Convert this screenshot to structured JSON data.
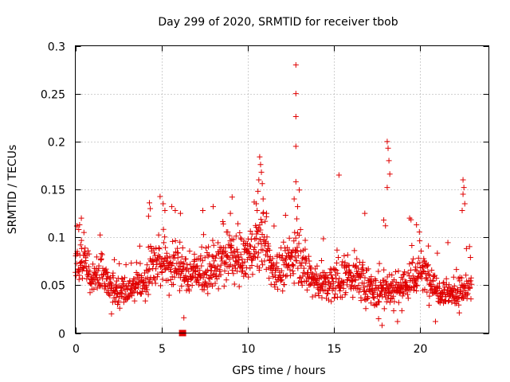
{
  "chart_data": {
    "type": "scatter",
    "title": "Day 299 of 2020, SRMTID for receiver tbob",
    "xlabel": "GPS time / hours",
    "ylabel": "SRMTID / TECUs",
    "xlim": [
      0,
      24
    ],
    "ylim": [
      0,
      0.3
    ],
    "x_ticks": [
      0,
      5,
      10,
      15,
      20
    ],
    "x_tick_labels": [
      "0",
      "5",
      "10",
      "15",
      "20"
    ],
    "y_ticks": [
      0,
      0.05,
      0.1,
      0.15,
      0.2,
      0.25,
      0.3
    ],
    "y_tick_labels": [
      "0",
      "0.05",
      "0.1",
      "0.15",
      "0.2",
      "0.25",
      "0.3"
    ],
    "grid": true,
    "marker": "plus",
    "color": "#e00000",
    "data_span_hours": [
      0,
      23
    ],
    "data_gap_markers": [
      6.2
    ],
    "profile": {
      "hours": [
        0,
        0.5,
        1,
        1.5,
        2,
        2.5,
        3,
        3.5,
        4,
        4.5,
        5,
        5.5,
        6,
        6.5,
        7,
        7.5,
        8,
        8.5,
        9,
        9.5,
        10,
        10.5,
        11,
        11.5,
        12,
        12.5,
        13,
        13.5,
        14,
        14.5,
        15,
        15.5,
        16,
        16.5,
        17,
        17.5,
        18,
        18.5,
        19,
        19.5,
        20,
        20.5,
        21,
        21.5,
        22,
        22.5,
        23
      ],
      "median": [
        0.075,
        0.08,
        0.05,
        0.065,
        0.05,
        0.045,
        0.045,
        0.05,
        0.055,
        0.075,
        0.075,
        0.07,
        0.07,
        0.06,
        0.065,
        0.06,
        0.065,
        0.075,
        0.08,
        0.075,
        0.08,
        0.095,
        0.09,
        0.065,
        0.065,
        0.075,
        0.085,
        0.06,
        0.055,
        0.05,
        0.05,
        0.06,
        0.06,
        0.055,
        0.05,
        0.04,
        0.05,
        0.045,
        0.05,
        0.055,
        0.065,
        0.06,
        0.045,
        0.045,
        0.04,
        0.045,
        0.05
      ],
      "spread": [
        0.025,
        0.02,
        0.015,
        0.02,
        0.015,
        0.015,
        0.015,
        0.015,
        0.02,
        0.025,
        0.025,
        0.025,
        0.025,
        0.02,
        0.02,
        0.02,
        0.02,
        0.025,
        0.025,
        0.025,
        0.025,
        0.03,
        0.03,
        0.02,
        0.02,
        0.025,
        0.025,
        0.02,
        0.02,
        0.02,
        0.02,
        0.025,
        0.02,
        0.02,
        0.02,
        0.015,
        0.02,
        0.02,
        0.02,
        0.025,
        0.02,
        0.02,
        0.015,
        0.015,
        0.015,
        0.015,
        0.02
      ]
    },
    "peaks": [
      {
        "x": 12.8,
        "y": 0.28
      },
      {
        "x": 12.8,
        "y": 0.25
      },
      {
        "x": 12.8,
        "y": 0.226
      },
      {
        "x": 12.8,
        "y": 0.195
      },
      {
        "x": 12.8,
        "y": 0.158
      },
      {
        "x": 18.1,
        "y": 0.2
      },
      {
        "x": 18.15,
        "y": 0.193
      },
      {
        "x": 18.2,
        "y": 0.18
      },
      {
        "x": 18.25,
        "y": 0.166
      },
      {
        "x": 18.1,
        "y": 0.152
      },
      {
        "x": 15.3,
        "y": 0.165
      },
      {
        "x": 22.5,
        "y": 0.16
      },
      {
        "x": 22.55,
        "y": 0.152
      },
      {
        "x": 22.5,
        "y": 0.145
      },
      {
        "x": 22.6,
        "y": 0.135
      },
      {
        "x": 22.45,
        "y": 0.128
      },
      {
        "x": 10.7,
        "y": 0.184
      },
      {
        "x": 10.75,
        "y": 0.176
      },
      {
        "x": 10.8,
        "y": 0.168
      },
      {
        "x": 10.65,
        "y": 0.16
      },
      {
        "x": 10.85,
        "y": 0.156
      },
      {
        "x": 10.6,
        "y": 0.148
      },
      {
        "x": 10.9,
        "y": 0.14
      },
      {
        "x": 10.5,
        "y": 0.135
      },
      {
        "x": 9.1,
        "y": 0.142
      },
      {
        "x": 12.7,
        "y": 0.14
      },
      {
        "x": 12.9,
        "y": 0.132
      },
      {
        "x": 4.3,
        "y": 0.136
      },
      {
        "x": 4.35,
        "y": 0.13
      },
      {
        "x": 4.25,
        "y": 0.122
      },
      {
        "x": 5.1,
        "y": 0.135
      },
      {
        "x": 5.2,
        "y": 0.128
      },
      {
        "x": 5.6,
        "y": 0.132
      },
      {
        "x": 5.8,
        "y": 0.128
      },
      {
        "x": 6.1,
        "y": 0.125
      },
      {
        "x": 0.1,
        "y": 0.112
      },
      {
        "x": 0.2,
        "y": 0.108
      },
      {
        "x": 0.35,
        "y": 0.12
      },
      {
        "x": 0.5,
        "y": 0.105
      },
      {
        "x": 0.25,
        "y": 0.113
      },
      {
        "x": 8.0,
        "y": 0.132
      },
      {
        "x": 7.4,
        "y": 0.128
      },
      {
        "x": 9.0,
        "y": 0.125
      },
      {
        "x": 11.1,
        "y": 0.125
      },
      {
        "x": 12.2,
        "y": 0.123
      },
      {
        "x": 16.8,
        "y": 0.125
      },
      {
        "x": 19.4,
        "y": 0.12
      },
      {
        "x": 19.8,
        "y": 0.113
      },
      {
        "x": 17.9,
        "y": 0.118
      },
      {
        "x": 18.0,
        "y": 0.112
      },
      {
        "x": 17.8,
        "y": 0.008
      },
      {
        "x": 17.6,
        "y": 0.015
      },
      {
        "x": 18.7,
        "y": 0.012
      },
      {
        "x": 20.9,
        "y": 0.012
      },
      {
        "x": 2.1,
        "y": 0.02
      },
      {
        "x": 6.3,
        "y": 0.016
      }
    ]
  }
}
